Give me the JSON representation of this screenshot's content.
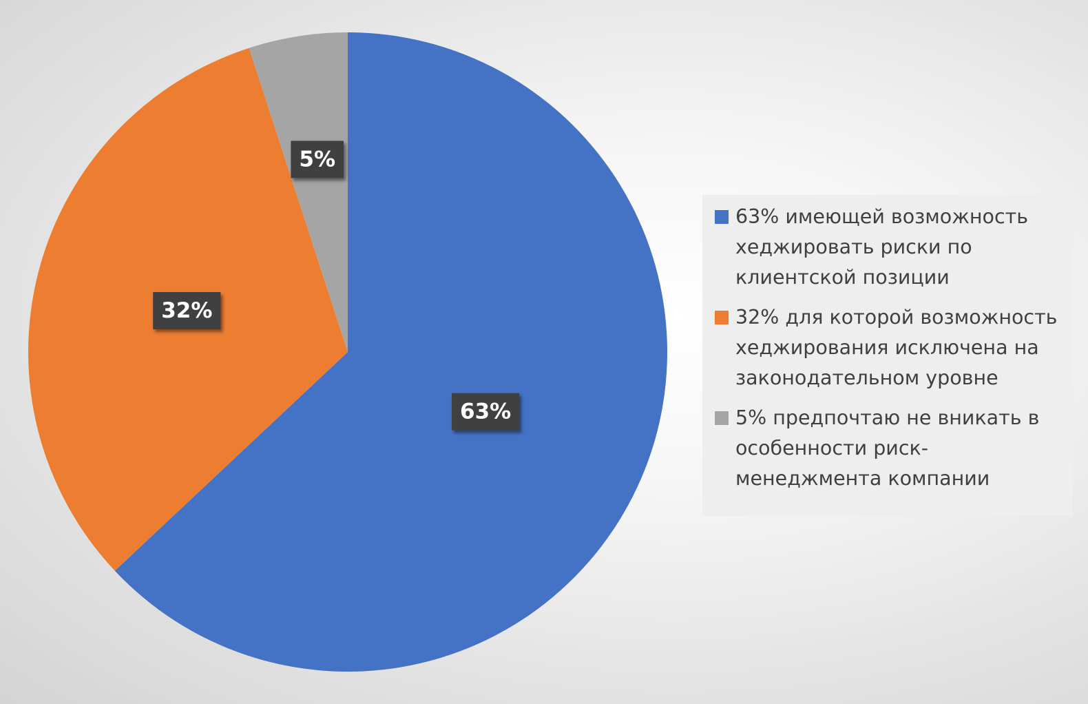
{
  "chart_data": {
    "type": "pie",
    "title": "",
    "start_angle_deg": 0,
    "direction": "clockwise",
    "legend_position": "right",
    "slices": [
      {
        "value": 63,
        "data_label": "63%",
        "legend_label": "63% имеющей возможность хеджировать риски по клиентской позиции",
        "color": "#4472C4"
      },
      {
        "value": 32,
        "data_label": "32%",
        "legend_label": "32% для которой возможность хеджирования исключена на законодательном уровне",
        "color": "#ED7D31"
      },
      {
        "value": 5,
        "data_label": "5%",
        "legend_label": "5% предпочтаю не вникать в особенности риск-менеджмента компании",
        "color": "#A5A5A5"
      }
    ],
    "data_label_style": {
      "background": "#404040",
      "text_color": "#FFFFFF"
    }
  }
}
